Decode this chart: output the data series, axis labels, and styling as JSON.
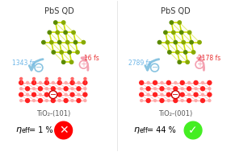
{
  "bg_color": "#ffffff",
  "left_title": "PbS QD",
  "right_title": "PbS QD",
  "left_surface": "TiO₂-(101)",
  "right_surface": "TiO₂-(001)",
  "left_time_left": "1343 fs",
  "left_time_right": "16 fs",
  "right_time_left": "2789 fs",
  "right_time_right": "2178 fs",
  "left_eta": "η",
  "left_eta_text": "eff = 1 %",
  "right_eta_text": "eff = 44 %",
  "left_arrow_color": "#89c4e1",
  "right_arrow_color": "#f4a0b0",
  "tio2_left_color": "#ff3030",
  "tio2_right_color": "#ff6060",
  "pbs_yellow": "#ccdd00",
  "pbs_green": "#5a8a00",
  "time_left_color": "#6db6e8",
  "time_right_color": "#e83030",
  "surface_text_color": "#555555",
  "title_color": "#333333"
}
